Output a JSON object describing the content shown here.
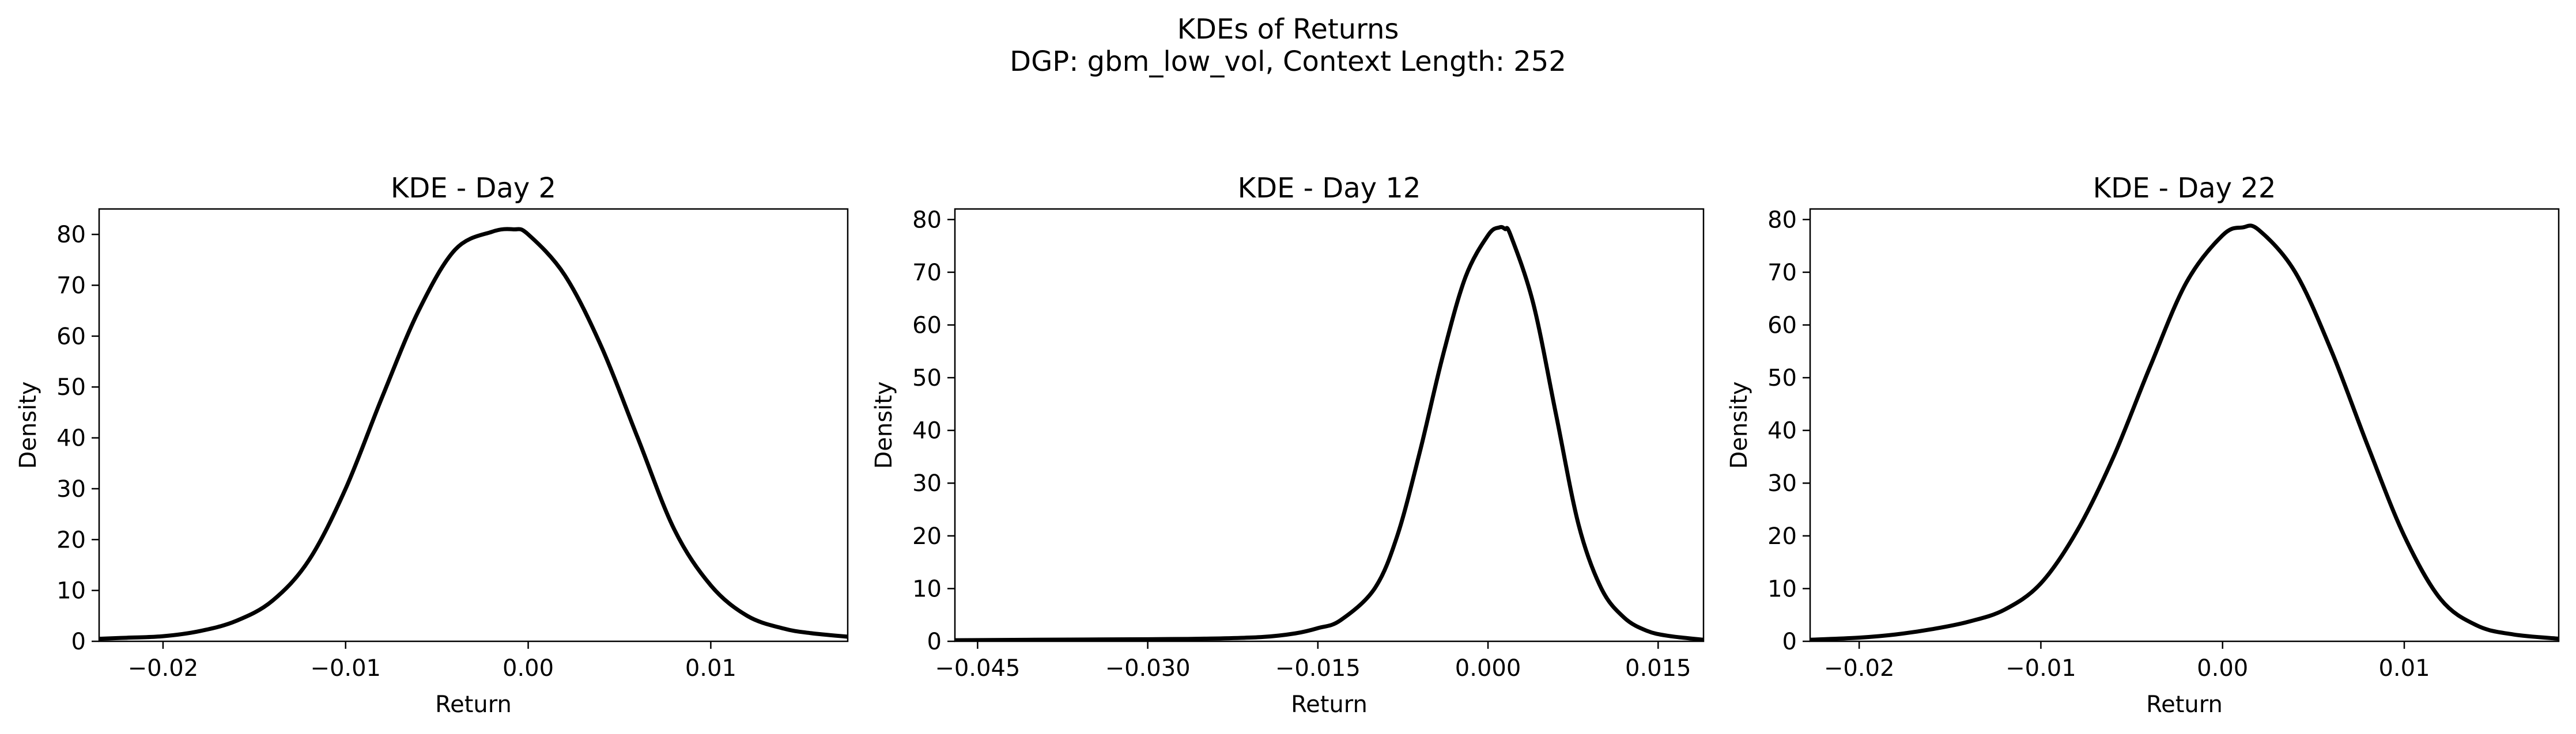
{
  "figure": {
    "title_line1": "KDEs of Returns",
    "title_line2": "DGP: gbm_low_vol, Context Length: 252"
  },
  "chart_data": [
    {
      "type": "line",
      "title": "KDE - Day 2",
      "xlabel": "Return",
      "ylabel": "Density",
      "xlim": [
        -0.0235,
        0.0175
      ],
      "ylim": [
        0,
        85
      ],
      "xticks": [
        -0.02,
        -0.01,
        0.0,
        0.01
      ],
      "xtick_labels": [
        "−0.02",
        "−0.01",
        "0.00",
        "0.01"
      ],
      "yticks": [
        0,
        10,
        20,
        30,
        40,
        50,
        60,
        70,
        80
      ],
      "grid": false,
      "line_color": "#000000",
      "series": [
        {
          "x": [
            -0.0235,
            -0.022,
            -0.02,
            -0.018,
            -0.016,
            -0.014,
            -0.012,
            -0.01,
            -0.008,
            -0.006,
            -0.004,
            -0.002,
            -0.0008,
            0.0,
            0.002,
            0.004,
            0.006,
            0.008,
            0.01,
            0.012,
            0.014,
            0.0155,
            0.0175
          ],
          "y": [
            0.5,
            0.7,
            1.0,
            2.0,
            4.0,
            8.0,
            16.0,
            30.0,
            48.0,
            65.0,
            77.0,
            80.5,
            81.0,
            80.0,
            72.0,
            58.0,
            40.0,
            22.0,
            11.0,
            5.0,
            2.5,
            1.6,
            0.9
          ]
        }
      ]
    },
    {
      "type": "line",
      "title": "KDE - Day 12",
      "xlabel": "Return",
      "ylabel": "Density",
      "xlim": [
        -0.047,
        0.019
      ],
      "ylim": [
        0,
        82
      ],
      "xticks": [
        -0.045,
        -0.03,
        -0.015,
        0.0,
        0.015
      ],
      "xtick_labels": [
        "−0.045",
        "−0.030",
        "−0.015",
        "0.000",
        "0.015"
      ],
      "yticks": [
        0,
        10,
        20,
        30,
        40,
        50,
        60,
        70,
        80
      ],
      "grid": false,
      "line_color": "#000000",
      "series": [
        {
          "x": [
            -0.047,
            -0.04,
            -0.03,
            -0.025,
            -0.02,
            -0.017,
            -0.015,
            -0.013,
            -0.01,
            -0.008,
            -0.006,
            -0.004,
            -0.002,
            0.0,
            0.001,
            0.0015,
            0.002,
            0.004,
            0.006,
            0.008,
            0.01,
            0.012,
            0.014,
            0.016,
            0.019
          ],
          "y": [
            0.2,
            0.3,
            0.4,
            0.5,
            0.8,
            1.5,
            2.5,
            4.0,
            10.0,
            20.0,
            36.0,
            54.0,
            69.0,
            77.0,
            78.5,
            78.2,
            77.0,
            64.0,
            43.0,
            22.0,
            10.0,
            4.5,
            2.0,
            1.0,
            0.3
          ]
        }
      ]
    },
    {
      "type": "line",
      "title": "KDE - Day 22",
      "xlabel": "Return",
      "ylabel": "Density",
      "xlim": [
        -0.0227,
        0.0185
      ],
      "ylim": [
        0,
        82
      ],
      "xticks": [
        -0.02,
        -0.01,
        0.0,
        0.01
      ],
      "xtick_labels": [
        "−0.02",
        "−0.01",
        "0.00",
        "0.01"
      ],
      "yticks": [
        0,
        10,
        20,
        30,
        40,
        50,
        60,
        70,
        80
      ],
      "grid": false,
      "line_color": "#000000",
      "series": [
        {
          "x": [
            -0.0227,
            -0.02,
            -0.018,
            -0.016,
            -0.014,
            -0.012,
            -0.01,
            -0.008,
            -0.006,
            -0.004,
            -0.002,
            0.0,
            0.0011,
            0.002,
            0.004,
            0.006,
            0.008,
            0.01,
            0.012,
            0.014,
            0.016,
            0.0185
          ],
          "y": [
            0.3,
            0.7,
            1.3,
            2.3,
            3.7,
            6.0,
            11.0,
            21.0,
            35.0,
            52.0,
            68.0,
            77.0,
            78.5,
            78.0,
            70.0,
            55.0,
            37.0,
            20.0,
            8.0,
            3.0,
            1.3,
            0.5
          ]
        }
      ]
    }
  ]
}
